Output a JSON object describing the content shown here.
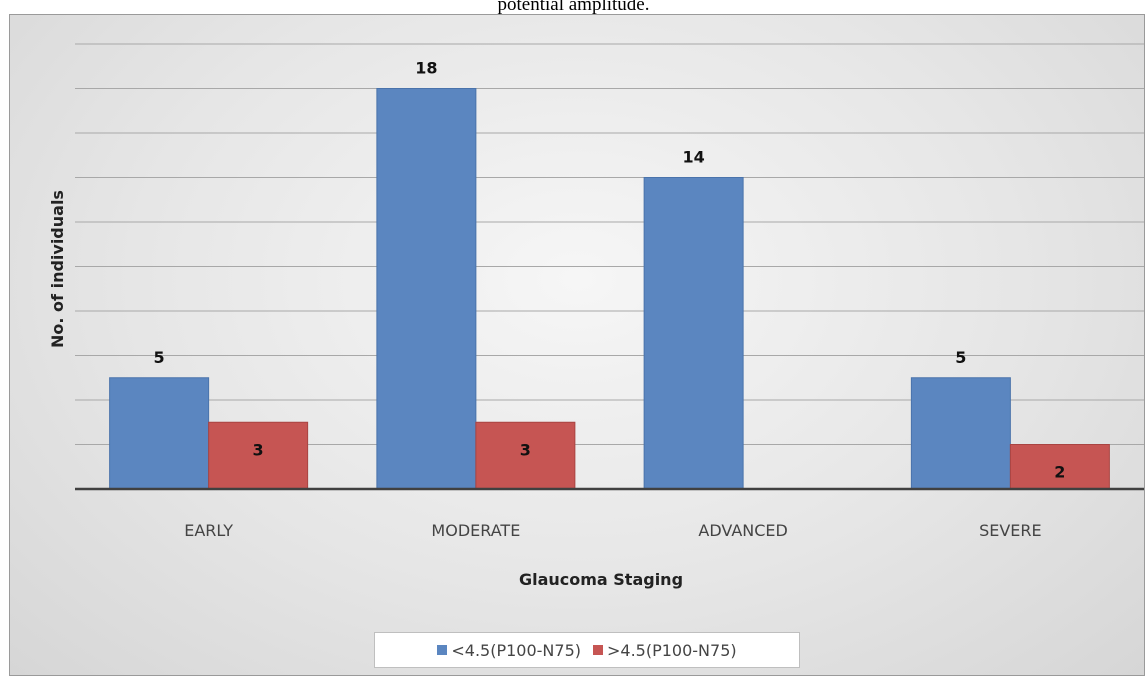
{
  "caption_fragment": "potential amplitude.",
  "colors": {
    "series1": "#5b86c0",
    "series1_edge": "#4a73ab",
    "series2": "#c65553",
    "series2_edge": "#a94442",
    "grid": "#a8a8a8",
    "axis": "#404040"
  },
  "chart_data": {
    "type": "bar",
    "categories": [
      "EARLY",
      "MODERATE",
      "ADVANCED",
      "SEVERE"
    ],
    "series": [
      {
        "name": "<4.5(P100-N75)",
        "values": [
          5,
          18,
          14,
          5
        ]
      },
      {
        "name": ">4.5(P100-N75)",
        "values": [
          3,
          3,
          null,
          2
        ]
      }
    ],
    "data_labels": [
      [
        "5",
        "18",
        "14",
        "5"
      ],
      [
        "3",
        "3",
        "",
        "2"
      ]
    ],
    "xlabel": "Glaucoma Staging",
    "ylabel": "No. of individuals",
    "ylim": [
      0,
      20
    ],
    "y_major_step": 2,
    "y_tick_labels_shown": false,
    "grid": true,
    "legend_position": "bottom"
  }
}
